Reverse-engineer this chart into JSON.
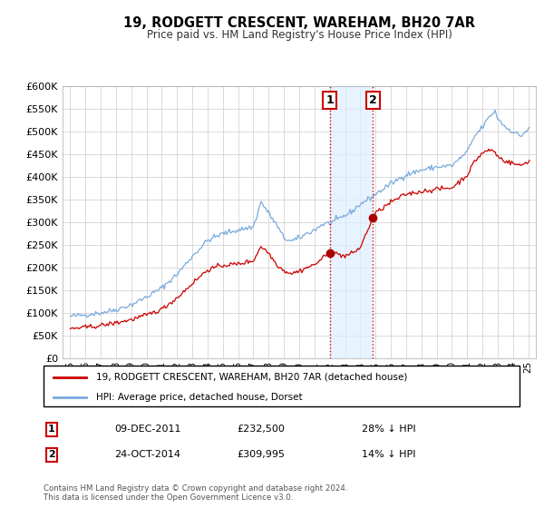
{
  "title": "19, RODGETT CRESCENT, WAREHAM, BH20 7AR",
  "subtitle": "Price paid vs. HM Land Registry's House Price Index (HPI)",
  "property_label": "19, RODGETT CRESCENT, WAREHAM, BH20 7AR (detached house)",
  "hpi_label": "HPI: Average price, detached house, Dorset",
  "footer": "Contains HM Land Registry data © Crown copyright and database right 2024.\nThis data is licensed under the Open Government Licence v3.0.",
  "sale1_date": "09-DEC-2011",
  "sale1_price": "£232,500",
  "sale1_hpi": "28% ↓ HPI",
  "sale2_date": "24-OCT-2014",
  "sale2_price": "£309,995",
  "sale2_hpi": "14% ↓ HPI",
  "property_color": "#cc0000",
  "hpi_color": "#7aaadd",
  "sale_marker_color": "#aa0000",
  "vline_color": "#cc0000",
  "shade_color": "#ddeeff",
  "ylim": [
    0,
    600000
  ],
  "yticks": [
    0,
    50000,
    100000,
    150000,
    200000,
    250000,
    300000,
    350000,
    400000,
    450000,
    500000,
    550000,
    600000
  ],
  "background_color": "#ffffff",
  "grid_color": "#cccccc",
  "sale1_x": 2012.0,
  "sale1_y": 232500,
  "sale2_x": 2014.83,
  "sale2_y": 309995,
  "vline1_x": 2012.0,
  "vline2_x": 2014.83,
  "xlim_left": 1994.5,
  "xlim_right": 2025.5
}
